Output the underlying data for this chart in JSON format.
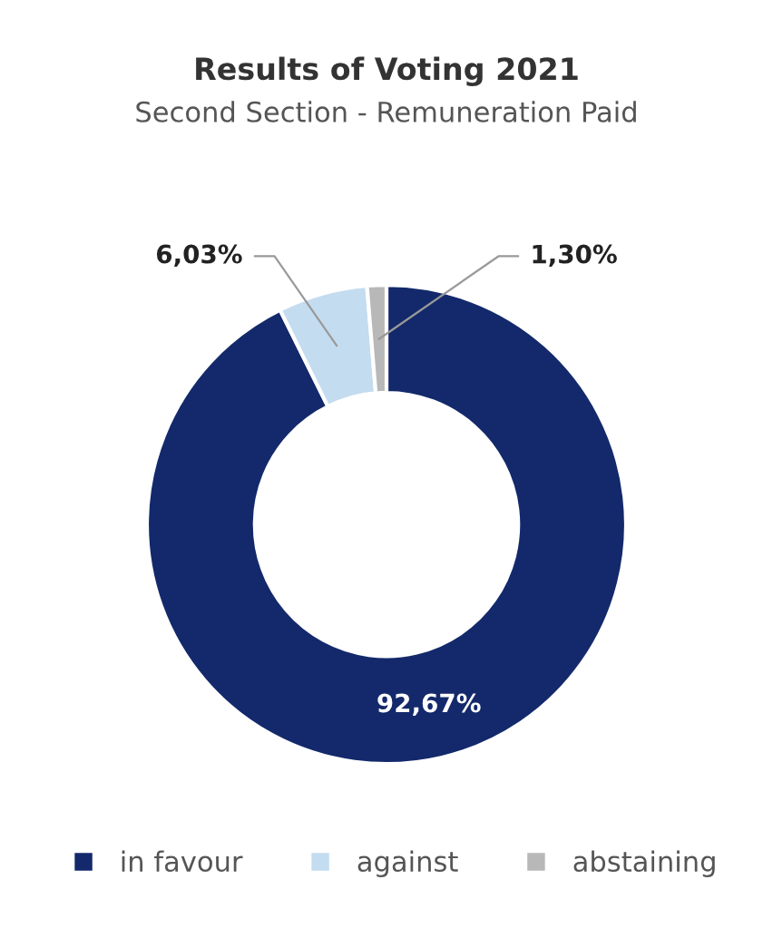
{
  "chart_data": {
    "type": "donut",
    "title": "Results of Voting 2021",
    "subtitle": "Second Section - Remuneration Paid",
    "categories": [
      "in favour",
      "against",
      "abstaining"
    ],
    "values": [
      92.67,
      6.03,
      1.3
    ],
    "colors": [
      "#13296b",
      "#c4dcf0",
      "#b8b8b8"
    ],
    "value_labels": [
      "92,67%",
      "6,03%",
      "1,30%"
    ],
    "legend": "bottom"
  }
}
